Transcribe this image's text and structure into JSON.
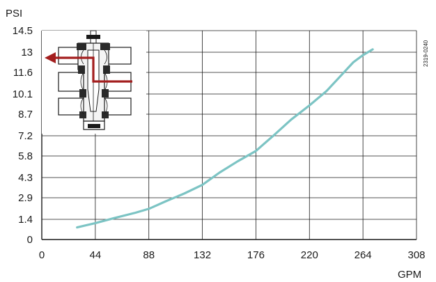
{
  "chart_data": {
    "type": "line",
    "y_unit": "PSI",
    "x_unit": "GPM",
    "figure_code": "2319-0240",
    "x_ticks": [
      "0",
      "44",
      "88",
      "132",
      "176",
      "220",
      "264",
      "308"
    ],
    "y_ticks": [
      "0",
      "1.4",
      "2.9",
      "4.3",
      "5.8",
      "7.2",
      "8.7",
      "10.1",
      "11.6",
      "13",
      "14.5"
    ],
    "xlim": [
      0,
      308
    ],
    "ylim": [
      0,
      14.5
    ],
    "grid": true,
    "series": [
      {
        "color": "#7cc4c4",
        "x": [
          29,
          44,
          59,
          77,
          88,
          102,
          117,
          132,
          146,
          161,
          176,
          190,
          205,
          220,
          234,
          245,
          256,
          264,
          272
        ],
        "y": [
          0.84,
          1.14,
          1.48,
          1.86,
          2.13,
          2.66,
          3.19,
          3.8,
          4.64,
          5.43,
          6.15,
          7.18,
          8.33,
          9.31,
          10.3,
          11.3,
          12.3,
          12.8,
          13.2
        ]
      }
    ]
  },
  "colors": {
    "axis": "#1a1a1a",
    "grid": "#1a1a1a",
    "curve": "#7cc4c4",
    "flow_arrow": "#a31f1f"
  },
  "inset": {
    "icon": "valve-cross-section-icon"
  }
}
